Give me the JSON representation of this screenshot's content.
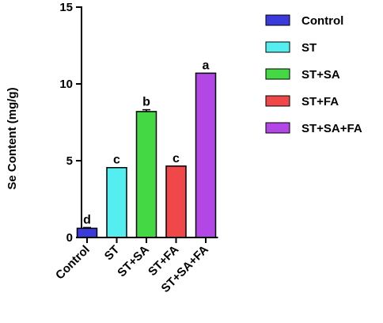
{
  "chart_data": {
    "type": "bar",
    "categories": [
      "Control",
      "ST",
      "ST+SA",
      "ST+FA",
      "ST+SA+FA"
    ],
    "values": [
      0.6,
      4.55,
      8.2,
      4.65,
      10.7
    ],
    "errors": [
      0.05,
      0.0,
      0.12,
      0.0,
      0.0
    ],
    "significance": [
      "d",
      "c",
      "b",
      "c",
      "a"
    ],
    "colors": [
      "#3b3bdc",
      "#55eef0",
      "#44d944",
      "#f04848",
      "#b347e6"
    ],
    "legend": [
      "Control",
      "ST",
      "ST+SA",
      "ST+FA",
      "ST+SA+FA"
    ],
    "title": "",
    "xlabel": "",
    "ylabel": "Se Content (mg/g)",
    "ylim": [
      0,
      15
    ],
    "yticks": [
      "0",
      "5",
      "10",
      "15"
    ],
    "ytick_values": [
      0,
      5,
      10,
      15
    ],
    "grid": false,
    "legend_position": "top-right"
  }
}
